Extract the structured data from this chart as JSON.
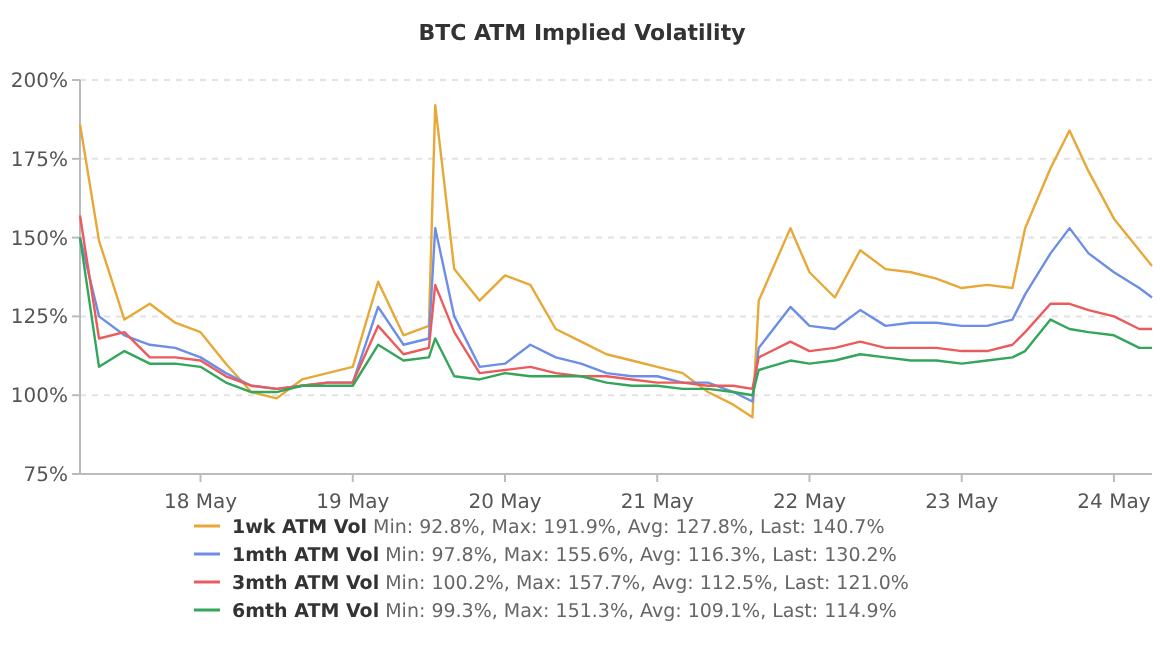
{
  "chart_data": {
    "type": "line",
    "title": "BTC ATM Implied Volatility",
    "x": [
      "--05-17T05:00",
      "--05-17T08:00",
      "--05-17T12:00",
      "--05-17T16:00",
      "--05-17T20:00",
      "--05-18T00:00",
      "--05-18T04:00",
      "--05-18T08:00",
      "--05-18T12:00",
      "--05-18T16:00",
      "--05-18T20:00",
      "--05-19T00:00",
      "--05-19T04:00",
      "--05-19T08:00",
      "--05-19T12:00",
      "--05-19T13:00",
      "--05-19T16:00",
      "--05-19T20:00",
      "--05-20T00:00",
      "--05-20T04:00",
      "--05-20T08:00",
      "--05-20T12:00",
      "--05-20T16:00",
      "--05-20T20:00",
      "--05-21T00:00",
      "--05-21T04:00",
      "--05-21T08:00",
      "--05-21T12:00",
      "--05-21T15:00",
      "--05-21T16:00",
      "--05-21T21:00",
      "--05-22T00:00",
      "--05-22T04:00",
      "--05-22T08:00",
      "--05-22T12:00",
      "--05-22T16:00",
      "--05-22T20:00",
      "--05-23T00:00",
      "--05-23T04:00",
      "--05-23T08:00",
      "--05-23T10:00",
      "--05-23T14:00",
      "--05-23T17:00",
      "--05-23T20:00",
      "--05-24T00:00",
      "--05-24T04:00",
      "--05-24T06:00"
    ],
    "series": [
      {
        "name": "1wk ATM Vol",
        "color": "#e8a838",
        "values": [
          186,
          149,
          124,
          129,
          123,
          120,
          110,
          101,
          99,
          105,
          107,
          109,
          136,
          119,
          122,
          192,
          140,
          130,
          138,
          135,
          121,
          117,
          113,
          111,
          109,
          107,
          101,
          97,
          93,
          130,
          153,
          139,
          131,
          146,
          140,
          139,
          137,
          134,
          135,
          134,
          153,
          172,
          184,
          171,
          156,
          146,
          141
        ]
      },
      {
        "name": "1mth ATM Vol",
        "color": "#6c8ee6",
        "values": [
          150,
          125,
          119,
          116,
          115,
          112,
          107,
          103,
          102,
          103,
          104,
          104,
          128,
          116,
          118,
          153,
          125,
          109,
          110,
          116,
          112,
          110,
          107,
          106,
          106,
          104,
          104,
          101,
          98,
          115,
          128,
          122,
          121,
          127,
          122,
          123,
          123,
          122,
          122,
          124,
          132,
          145,
          153,
          145,
          139,
          134,
          131
        ]
      },
      {
        "name": "3mth ATM Vol",
        "color": "#ec5b5b",
        "values": [
          157,
          118,
          120,
          112,
          112,
          111,
          106,
          103,
          102,
          103,
          104,
          104,
          122,
          113,
          115,
          135,
          120,
          107,
          108,
          109,
          107,
          106,
          106,
          105,
          104,
          104,
          103,
          103,
          102,
          112,
          117,
          114,
          115,
          117,
          115,
          115,
          115,
          114,
          114,
          116,
          120,
          129,
          129,
          127,
          125,
          121,
          121
        ]
      },
      {
        "name": "6mth ATM Vol",
        "color": "#33a65a",
        "values": [
          150,
          109,
          114,
          110,
          110,
          109,
          104,
          101,
          101,
          103,
          103,
          103,
          116,
          111,
          112,
          118,
          106,
          105,
          107,
          106,
          106,
          106,
          104,
          103,
          103,
          102,
          102,
          101,
          100,
          108,
          111,
          110,
          111,
          113,
          112,
          111,
          111,
          110,
          111,
          112,
          114,
          124,
          121,
          120,
          119,
          115,
          115
        ]
      }
    ],
    "annotations": [
      "Min: 92.8%, Max: 191.9%, Avg: 127.8%, Last: 140.7%",
      "Min: 97.8%, Max: 155.6%, Avg: 116.3%, Last: 130.2%",
      "Min: 100.2%, Max: 157.7%, Avg: 112.5%, Last: 121.0%",
      "Min: 99.3%, Max: 151.3%, Avg: 109.1%, Last: 114.9%"
    ],
    "xlim": [
      "--05-17T05:00",
      "--05-24T06:00"
    ],
    "xticks": [
      {
        "value": "--05-18",
        "label": "18 May"
      },
      {
        "value": "--05-19",
        "label": "19 May"
      },
      {
        "value": "--05-20",
        "label": "20 May"
      },
      {
        "value": "--05-21",
        "label": "21 May"
      },
      {
        "value": "--05-22",
        "label": "22 May"
      },
      {
        "value": "--05-23",
        "label": "23 May"
      },
      {
        "value": "--05-24",
        "label": "24 May"
      }
    ],
    "ylim": [
      75,
      200
    ],
    "yticks": [
      {
        "value": 75,
        "label": "75%"
      },
      {
        "value": 100,
        "label": "100%"
      },
      {
        "value": 125,
        "label": "125%"
      },
      {
        "value": 150,
        "label": "150%"
      },
      {
        "value": 175,
        "label": "175%"
      },
      {
        "value": 200,
        "label": "200%"
      }
    ],
    "grid": "y",
    "legend": "bottom",
    "marker": "none",
    "line_style": "solid"
  }
}
